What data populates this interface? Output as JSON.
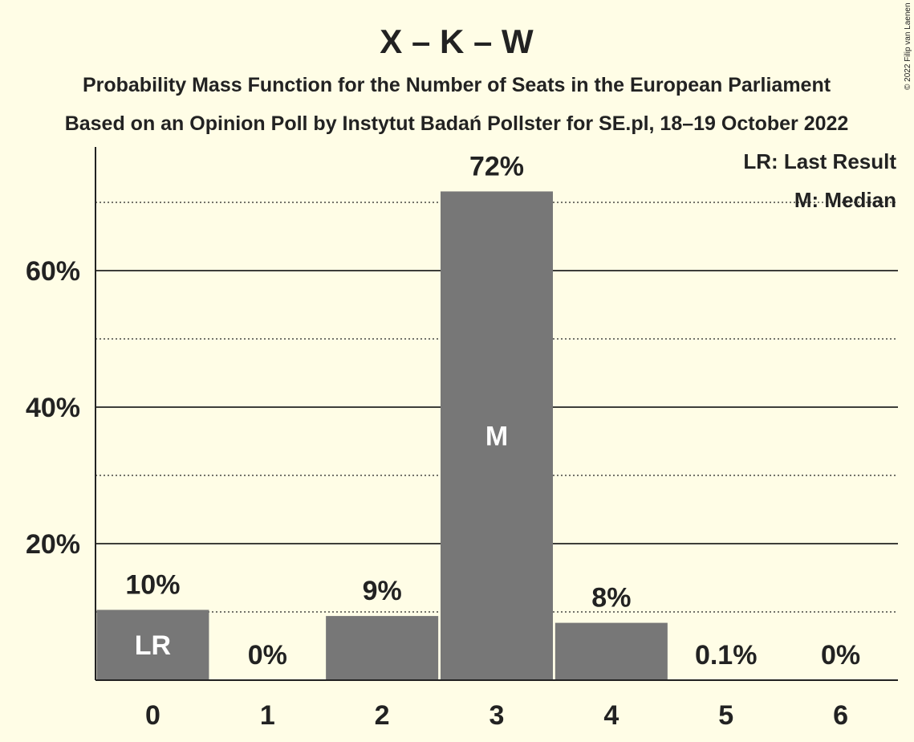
{
  "chart_data": {
    "type": "bar",
    "title": "X – K – W",
    "subtitle_1": "Probability Mass Function for the Number of Seats in the European Parliament",
    "subtitle_2": "Based on an Opinion Poll by Instytut Badań Pollster for SE.pl, 18–19 October 2022",
    "xlabel": "",
    "ylabel": "",
    "categories": [
      "0",
      "1",
      "2",
      "3",
      "4",
      "5",
      "6"
    ],
    "values": [
      10.3,
      0,
      9.4,
      71.6,
      8.4,
      0.1,
      0
    ],
    "data_labels": [
      "10%",
      "0%",
      "9%",
      "72%",
      "8%",
      "0.1%",
      "0%"
    ],
    "bar_annotations": [
      {
        "category": "0",
        "text": "LR"
      },
      {
        "category": "3",
        "text": "M"
      }
    ],
    "ylim": [
      0,
      78
    ],
    "yticks": [
      20,
      40,
      60
    ],
    "ytick_labels": [
      "20%",
      "40%",
      "60%"
    ],
    "minor_gridlines": [
      10,
      30,
      50,
      70
    ],
    "grid": true,
    "legend": {
      "placement": "top-right",
      "entries": [
        "LR: Last Result",
        "M: Median"
      ]
    },
    "colors": {
      "background": "#fffde6",
      "bar": "#777777",
      "axis": "#222222",
      "inbar_text": "#ffffff"
    },
    "copyright": "© 2022 Filip van Laenen"
  }
}
